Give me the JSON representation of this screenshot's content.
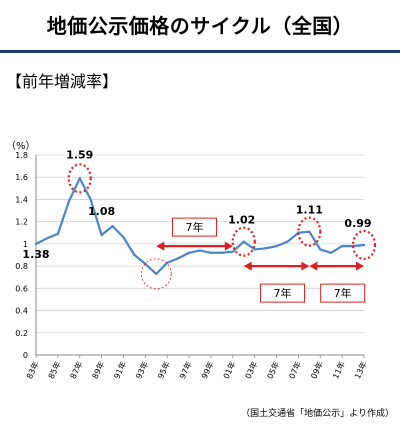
{
  "header": {
    "title": "地価公示価格のサイクル（全国）"
  },
  "section": {
    "label": "【前年増減率】"
  },
  "y_unit": "（%）",
  "source": "（国土交通省「地価公示」より作成）",
  "accent_colors": {
    "line": "#4a86c8",
    "highlight": "#e02020",
    "title_rule": "#1f3a68"
  },
  "chart_data": {
    "type": "line",
    "title": "",
    "xlabel": "",
    "ylabel": "（%）",
    "ylim": [
      0,
      1.8
    ],
    "yticks": [
      "0",
      "0.2",
      "0.4",
      "0.6",
      "0.8",
      "1",
      "1.2",
      "1.4",
      "1.6",
      "1.8"
    ],
    "xtick_labels": [
      "83年",
      "85年",
      "87年",
      "89年",
      "91年",
      "93年",
      "95年",
      "97年",
      "99年",
      "01年",
      "03年",
      "05年",
      "07年",
      "09年",
      "11年",
      "13年"
    ],
    "grid": "horizontal",
    "series": [
      {
        "x": [
          1983,
          1984,
          1985,
          1986,
          1987,
          1988,
          1989,
          1990,
          1991,
          1992,
          1993,
          1994,
          1995,
          1996,
          1997,
          1998,
          1999,
          2000,
          2001,
          2002,
          2003,
          2004,
          2005,
          2006,
          2007,
          2008,
          2009,
          2010,
          2011,
          2012,
          2013
        ],
        "values": [
          1.0,
          1.05,
          1.09,
          1.38,
          1.59,
          1.4,
          1.08,
          1.16,
          1.06,
          0.9,
          0.82,
          0.73,
          0.83,
          0.87,
          0.92,
          0.94,
          0.92,
          0.92,
          0.93,
          1.02,
          0.95,
          0.96,
          0.98,
          1.02,
          1.1,
          1.11,
          0.95,
          0.92,
          0.98,
          0.98,
          0.99
        ]
      }
    ],
    "annotations": {
      "labels": [
        {
          "text": "1.59",
          "x": 1987,
          "y": 1.59
        },
        {
          "text": "1.38",
          "x": 1983,
          "y": 1.0
        },
        {
          "text": "1.08",
          "x": 1989,
          "y": 1.08
        },
        {
          "text": "1.02",
          "x": 2002,
          "y": 1.02
        },
        {
          "text": "1.11",
          "x": 2008,
          "y": 1.11
        },
        {
          "text": "0.99",
          "x": 2013,
          "y": 0.99
        }
      ],
      "circles": [
        {
          "x": 1987,
          "y": 1.59,
          "style": "dotted"
        },
        {
          "x": 2002,
          "y": 1.02,
          "style": "dotted"
        },
        {
          "x": 2008,
          "y": 1.11,
          "style": "dotted"
        },
        {
          "x": 2013,
          "y": 0.99,
          "style": "dotted"
        },
        {
          "x": 1994,
          "y": 0.73,
          "style": "thin-dashed"
        }
      ],
      "spans": [
        {
          "label": "7年",
          "from": 1994,
          "to": 2001,
          "y": 0.98
        },
        {
          "label": "7年",
          "from": 2002,
          "to": 2008,
          "y": 0.8
        },
        {
          "label": "7年",
          "from": 2008,
          "to": 2013,
          "y": 0.8
        }
      ]
    }
  }
}
